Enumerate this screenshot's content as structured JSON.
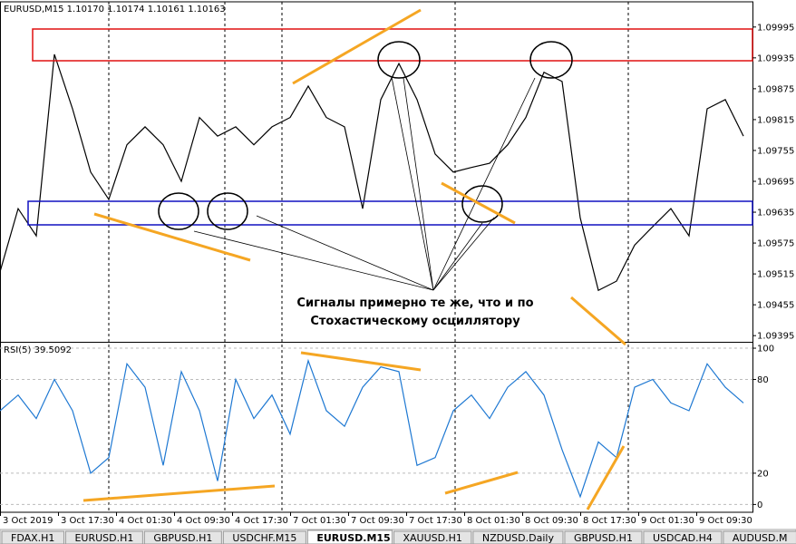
{
  "chart_data": [
    {
      "type": "line",
      "title": "EURUSD,M15  1.10170 1.10174 1.10161 1.10163",
      "color": "#000000",
      "x": [
        0,
        5,
        10,
        15,
        20,
        25,
        30,
        35,
        40,
        45,
        50,
        55,
        60,
        65,
        70,
        75,
        80,
        85,
        90,
        95,
        100,
        105,
        110,
        115,
        120,
        125,
        130,
        135,
        140,
        145,
        150,
        155,
        160,
        165,
        170,
        175,
        180,
        185,
        190,
        195,
        200,
        205
      ],
      "values": [
        1.09519,
        1.09642,
        1.09589,
        1.09942,
        1.09836,
        1.09713,
        1.0966,
        1.09766,
        1.09801,
        1.09766,
        1.09695,
        1.09819,
        1.09783,
        1.09801,
        1.09766,
        1.09801,
        1.09819,
        1.0988,
        1.09819,
        1.09801,
        1.09642,
        1.09854,
        1.09924,
        1.09854,
        1.09748,
        1.09713,
        1.09722,
        1.0973,
        1.09766,
        1.09819,
        1.09907,
        1.09889,
        1.09624,
        1.09483,
        1.09501,
        1.09571,
        1.09607,
        1.09642,
        1.09589,
        1.09836,
        1.09854,
        1.09783
      ],
      "xlim": [
        0,
        207.5
      ],
      "ylim": [
        1.09383,
        1.10044
      ],
      "yticks": [
        1.09395,
        1.09455,
        1.09515,
        1.09575,
        1.09635,
        1.09695,
        1.09755,
        1.09815,
        1.09875,
        1.09935,
        1.09995
      ]
    },
    {
      "type": "line",
      "title": "RSI(5) 39.5092",
      "color": "#1e78d2",
      "x": [
        0,
        5,
        10,
        15,
        20,
        25,
        30,
        35,
        40,
        45,
        50,
        55,
        60,
        65,
        70,
        75,
        80,
        85,
        90,
        95,
        100,
        105,
        110,
        115,
        120,
        125,
        130,
        135,
        140,
        145,
        150,
        155,
        160,
        165,
        170,
        175,
        180,
        185,
        190,
        195,
        200,
        205
      ],
      "values": [
        60,
        70,
        55,
        80,
        60,
        20,
        30,
        90,
        75,
        25,
        85,
        60,
        15,
        80,
        55,
        70,
        45,
        92,
        60,
        50,
        75,
        88,
        85,
        25,
        30,
        60,
        70,
        55,
        75,
        85,
        70,
        35,
        5,
        40,
        30,
        75,
        80,
        65,
        60,
        90,
        75,
        65
      ],
      "xlim": [
        0,
        207.5
      ],
      "ylim": [
        -5,
        103.5
      ],
      "yticks": [
        0,
        20,
        80,
        100
      ],
      "xticks": [
        {
          "value": 0,
          "label": "3 Oct 2019"
        },
        {
          "value": 16,
          "label": "3 Oct 17:30"
        },
        {
          "value": 32,
          "label": "4 Oct 01:30"
        },
        {
          "value": 48,
          "label": "4 Oct 09:30"
        },
        {
          "value": 64,
          "label": "4 Oct 17:30"
        },
        {
          "value": 80,
          "label": "7 Oct 01:30"
        },
        {
          "value": 96,
          "label": "7 Oct 09:30"
        },
        {
          "value": 112,
          "label": "7 Oct 17:30"
        },
        {
          "value": 128,
          "label": "8 Oct 01:30"
        },
        {
          "value": 144,
          "label": "8 Oct 09:30"
        },
        {
          "value": 160,
          "label": "8 Oct 17:30"
        },
        {
          "value": 176,
          "label": "9 Oct 01:30"
        },
        {
          "value": 192,
          "label": "9 Oct 09:30"
        }
      ]
    }
  ],
  "annotation": [
    "Сигналы примерно те же, что и по",
    "Стохастическому осциллятору"
  ],
  "tabs": [
    "FDAX.H1",
    "EURUSD.H1",
    "GBPUSD.H1",
    "USDCHF.M15",
    "EURUSD.M15",
    "XAUUSD.H1",
    "NZDUSD.Daily",
    "GBPUSD.H1",
    "USDCAD.H4",
    "AUDUSD.M"
  ]
}
